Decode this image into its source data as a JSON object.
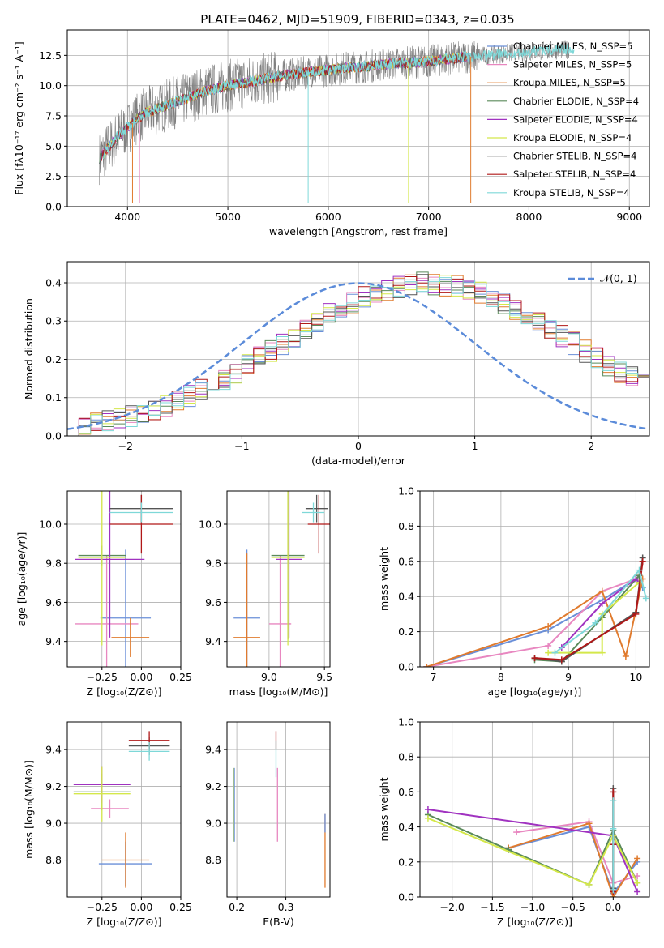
{
  "figure_title": "PLATE=0462, MJD=51909, FIBERID=0343, z=0.035",
  "colors": {
    "Chabrier MILES": "#6a8fd8",
    "Salpeter MILES": "#e887c0",
    "Kroupa MILES": "#e07b2e",
    "Chabrier ELODIE": "#5a8a5a",
    "Salpeter ELODIE": "#a032c0",
    "Kroupa ELODIE": "#d4e84a",
    "Chabrier STELIB": "#555555",
    "Salpeter STELIB": "#b01818",
    "Kroupa STELIB": "#7ed8d8",
    "data": "#808080",
    "normal": "#5b8bd9"
  },
  "chart_data": [
    {
      "type": "line",
      "title": "PLATE=0462, MJD=51909, FIBERID=0343, z=0.035",
      "xlabel": "wavelength [Angstrom, rest frame]",
      "ylabel": "Flux [fλ10⁻¹⁷ erg cm⁻² s⁻¹ A⁻¹]",
      "xlim": [
        3400,
        9200
      ],
      "ylim": [
        0,
        14.6
      ],
      "xticks": [
        4000,
        5000,
        6000,
        7000,
        8000,
        9000
      ],
      "yticks": [
        0.0,
        2.5,
        5.0,
        7.5,
        10.0,
        12.5
      ],
      "legend_position": "right",
      "legend": [
        "Chabrier MILES, N_SSP=5",
        "Salpeter MILES, N_SSP=5",
        "Kroupa MILES, N_SSP=5",
        "Chabrier ELODIE, N_SSP=4",
        "Salpeter ELODIE, N_SSP=4",
        "Kroupa ELODIE, N_SSP=4",
        "Chabrier STELIB, N_SSP=4",
        "Salpeter STELIB, N_SSP=4",
        "Kroupa STELIB, N_SSP=4"
      ],
      "continuum": {
        "x": [
          3720,
          3800,
          3900,
          4000,
          4100,
          4200,
          4400,
          4600,
          4800,
          5000,
          5200,
          5400,
          5600,
          5800,
          6000,
          6200,
          6400,
          6600,
          6800,
          7000,
          7200,
          7400,
          7600,
          7800,
          8000,
          8200,
          8400
        ],
        "y": [
          4.0,
          4.8,
          5.8,
          6.5,
          7.3,
          7.8,
          8.4,
          9.0,
          9.6,
          10.0,
          10.3,
          10.6,
          10.9,
          11.1,
          11.3,
          11.5,
          11.6,
          11.8,
          11.9,
          12.0,
          12.2,
          12.4,
          12.5,
          12.7,
          12.8,
          12.9,
          13.0
        ]
      }
    },
    {
      "type": "bar",
      "title": "",
      "xlabel": "(data-model)/error",
      "ylabel": "Normed distribution",
      "xlim": [
        -2.5,
        2.5
      ],
      "ylim": [
        0,
        0.455
      ],
      "xticks": [
        -2,
        -1,
        0,
        1,
        2
      ],
      "yticks": [
        0.0,
        0.1,
        0.2,
        0.3,
        0.4
      ],
      "legend": [
        "𝒩(0, 1)"
      ],
      "bin_width": 0.1,
      "bin_start": -2.5,
      "histogram_base": [
        0.02,
        0.026,
        0.031,
        0.037,
        0.043,
        0.051,
        0.059,
        0.069,
        0.079,
        0.09,
        0.104,
        0.119,
        0.134,
        0.151,
        0.167,
        0.185,
        0.203,
        0.222,
        0.241,
        0.26,
        0.279,
        0.3,
        0.318,
        0.333,
        0.349,
        0.362,
        0.372,
        0.382,
        0.39,
        0.395,
        0.398,
        0.398,
        0.395,
        0.39,
        0.382,
        0.372,
        0.36,
        0.347,
        0.332,
        0.316,
        0.298,
        0.28,
        0.261,
        0.242,
        0.222,
        0.203,
        0.185,
        0.167,
        0.151,
        0.134,
        0.119,
        0.104,
        0.09,
        0.079,
        0.069,
        0.059,
        0.051,
        0.043,
        0.037,
        0.031,
        0.026,
        0.022,
        0.02,
        0.018,
        0.017,
        0.016,
        0.015,
        0.015,
        0.015,
        0.015
      ],
      "normal_pdf": {
        "mean": 0,
        "sigma": 1
      }
    },
    {
      "type": "scatter",
      "xlabel": "Z [log₁₀(Z/Z⊙)]",
      "ylabel": "age  [log₁₀(age/yr)]",
      "xlim": [
        -0.47,
        0.25
      ],
      "ylim": [
        9.27,
        10.17
      ],
      "xticks": [
        -0.25,
        0.0,
        0.25
      ],
      "yticks": [
        9.4,
        9.6,
        9.8,
        10.0
      ],
      "points": [
        {
          "series": "Chabrier MILES",
          "x": -0.1,
          "y": 9.52,
          "xerr": 0.16,
          "yerr": 0.35
        },
        {
          "series": "Salpeter MILES",
          "x": -0.22,
          "y": 9.49,
          "xerr": 0.2,
          "yerr": 0.35
        },
        {
          "series": "Kroupa MILES",
          "x": -0.07,
          "y": 9.42,
          "xerr": 0.12,
          "yerr": 0.1
        },
        {
          "series": "Chabrier ELODIE",
          "x": -0.25,
          "y": 9.84,
          "xerr": 0.15,
          "yerr": 0.05
        },
        {
          "series": "Salpeter ELODIE",
          "x": -0.2,
          "y": 9.82,
          "xerr": 0.22,
          "yerr": 0.4
        },
        {
          "series": "Kroupa ELODIE",
          "x": -0.25,
          "y": 9.83,
          "xerr": 0.15,
          "yerr": 0.45
        },
        {
          "series": "Chabrier STELIB",
          "x": 0.0,
          "y": 10.08,
          "xerr": 0.2,
          "yerr": 0.07
        },
        {
          "series": "Salpeter STELIB",
          "x": 0.0,
          "y": 10.0,
          "xerr": 0.2,
          "yerr": 0.15
        },
        {
          "series": "Kroupa STELIB",
          "x": 0.0,
          "y": 10.06,
          "xerr": 0.2,
          "yerr": 0.05
        }
      ]
    },
    {
      "type": "scatter",
      "xlabel": "mass [log₁₀(M/M⊙)]",
      "ylabel": "",
      "xlim": [
        8.62,
        9.55
      ],
      "ylim": [
        9.27,
        10.17
      ],
      "xticks": [
        9.0,
        9.5
      ],
      "yticks": [
        9.4,
        9.6,
        9.8,
        10.0
      ],
      "points": [
        {
          "series": "Chabrier MILES",
          "x": 8.8,
          "y": 9.52,
          "xerr": 0.12,
          "yerr": 0.35
        },
        {
          "series": "Salpeter MILES",
          "x": 9.1,
          "y": 9.49,
          "xerr": 0.1,
          "yerr": 0.35
        },
        {
          "series": "Kroupa MILES",
          "x": 8.8,
          "y": 9.42,
          "xerr": 0.12,
          "yerr": 0.43
        },
        {
          "series": "Chabrier ELODIE",
          "x": 9.17,
          "y": 9.84,
          "xerr": 0.15,
          "yerr": 0.43
        },
        {
          "series": "Salpeter ELODIE",
          "x": 9.18,
          "y": 9.82,
          "xerr": 0.12,
          "yerr": 0.4
        },
        {
          "series": "Kroupa ELODIE",
          "x": 9.17,
          "y": 9.83,
          "xerr": 0.15,
          "yerr": 0.45
        },
        {
          "series": "Chabrier STELIB",
          "x": 9.43,
          "y": 10.08,
          "xerr": 0.1,
          "yerr": 0.07
        },
        {
          "series": "Salpeter STELIB",
          "x": 9.45,
          "y": 10.0,
          "xerr": 0.1,
          "yerr": 0.15
        },
        {
          "series": "Kroupa STELIB",
          "x": 9.4,
          "y": 10.06,
          "xerr": 0.1,
          "yerr": 0.05
        }
      ]
    },
    {
      "type": "line",
      "xlabel": "age  [log₁₀(age/yr)]",
      "ylabel": "mass weight",
      "xlim": [
        6.8,
        10.2
      ],
      "ylim": [
        0,
        1
      ],
      "xticks": [
        7,
        8,
        9,
        10
      ],
      "yticks": [
        0.0,
        0.2,
        0.4,
        0.6,
        0.8,
        1.0
      ],
      "series": [
        {
          "name": "Chabrier MILES",
          "x": [
            6.9,
            8.7,
            9.5,
            10.0,
            10.1
          ],
          "y": [
            0.0,
            0.21,
            0.38,
            0.5,
            0.45
          ]
        },
        {
          "name": "Salpeter MILES",
          "x": [
            6.9,
            8.7,
            9.5,
            10.0,
            10.05
          ],
          "y": [
            0.0,
            0.12,
            0.43,
            0.5,
            0.52
          ]
        },
        {
          "name": "Kroupa MILES",
          "x": [
            6.9,
            8.7,
            9.5,
            9.85,
            10.1
          ],
          "y": [
            0.0,
            0.23,
            0.43,
            0.06,
            0.5
          ]
        },
        {
          "name": "Chabrier ELODIE",
          "x": [
            8.5,
            8.9,
            9.5,
            10.05
          ],
          "y": [
            0.04,
            0.03,
            0.28,
            0.52
          ]
        },
        {
          "name": "Salpeter ELODIE",
          "x": [
            8.9,
            9.5,
            10.0,
            10.05
          ],
          "y": [
            0.11,
            0.36,
            0.5,
            0.48
          ]
        },
        {
          "name": "Kroupa ELODIE",
          "x": [
            8.7,
            9.5,
            9.5,
            10.05
          ],
          "y": [
            0.08,
            0.08,
            0.3,
            0.48
          ]
        },
        {
          "name": "Chabrier STELIB",
          "x": [
            8.5,
            8.9,
            10.0,
            10.1
          ],
          "y": [
            0.05,
            0.03,
            0.31,
            0.62
          ]
        },
        {
          "name": "Salpeter STELIB",
          "x": [
            8.5,
            8.9,
            10.0,
            10.1
          ],
          "y": [
            0.05,
            0.04,
            0.3,
            0.6
          ]
        },
        {
          "name": "Kroupa STELIB",
          "x": [
            8.8,
            9.4,
            10.05,
            10.15
          ],
          "y": [
            0.08,
            0.25,
            0.55,
            0.39
          ]
        }
      ]
    },
    {
      "type": "scatter",
      "xlabel": "Z [log₁₀(Z/Z⊙)]",
      "ylabel": "mass [log₁₀(M/M⊙)]",
      "xlim": [
        -0.47,
        0.25
      ],
      "ylim": [
        8.6,
        9.55
      ],
      "xticks": [
        -0.25,
        0.0,
        0.25
      ],
      "yticks": [
        8.8,
        9.0,
        9.2,
        9.4
      ],
      "points": [
        {
          "series": "Chabrier MILES",
          "x": -0.1,
          "y": 8.78,
          "xerr": 0.17,
          "yerr": 0.12
        },
        {
          "series": "Salpeter MILES",
          "x": -0.2,
          "y": 9.08,
          "xerr": 0.12,
          "yerr": 0.05
        },
        {
          "series": "Kroupa MILES",
          "x": -0.1,
          "y": 8.8,
          "xerr": 0.15,
          "yerr": 0.15
        },
        {
          "series": "Chabrier ELODIE",
          "x": -0.25,
          "y": 9.17,
          "xerr": 0.18,
          "yerr": 0.1
        },
        {
          "series": "Salpeter ELODIE",
          "x": -0.25,
          "y": 9.21,
          "xerr": 0.18,
          "yerr": 0.1
        },
        {
          "series": "Kroupa ELODIE",
          "x": -0.25,
          "y": 9.16,
          "xerr": 0.18,
          "yerr": 0.15
        },
        {
          "series": "Chabrier STELIB",
          "x": 0.05,
          "y": 9.42,
          "xerr": 0.13,
          "yerr": 0.05
        },
        {
          "series": "Salpeter STELIB",
          "x": 0.05,
          "y": 9.45,
          "xerr": 0.13,
          "yerr": 0.05
        },
        {
          "series": "Kroupa STELIB",
          "x": 0.05,
          "y": 9.39,
          "xerr": 0.13,
          "yerr": 0.05
        }
      ]
    },
    {
      "type": "scatter",
      "xlabel": "E(B-V)",
      "ylabel": "",
      "xlim": [
        0.18,
        0.39
      ],
      "ylim": [
        8.6,
        9.55
      ],
      "xticks": [
        0.2,
        0.3
      ],
      "yticks": [
        8.8,
        9.0,
        9.2,
        9.4
      ],
      "points": [
        {
          "series": "Chabrier MILES",
          "x": 0.195,
          "y": 9.1,
          "yerr": 0.2
        },
        {
          "series": "Salpeter MILES",
          "x": 0.283,
          "y": 9.1,
          "yerr": 0.2
        },
        {
          "series": "Kroupa MILES",
          "x": 0.38,
          "y": 8.85,
          "yerr": 0.2
        },
        {
          "series": "Salpeter STELIB",
          "x": 0.28,
          "y": 9.45,
          "yerr": 0.05
        },
        {
          "series": "Kroupa STELIB",
          "x": 0.28,
          "y": 9.35,
          "yerr": 0.1
        },
        {
          "series": "Kroupa ELODIE",
          "x": 0.193,
          "y": 9.1,
          "yerr": 0.2
        },
        {
          "series": "Chabrier MILES",
          "x": 0.38,
          "y": 9.0,
          "yerr": 0.05
        }
      ]
    },
    {
      "type": "line",
      "xlabel": "Z [log₁₀(Z/Z⊙)]",
      "ylabel": "mass weight",
      "xlim": [
        -2.4,
        0.45
      ],
      "ylim": [
        0,
        1
      ],
      "xticks": [
        -2.0,
        -1.5,
        -1.0,
        -0.5,
        0.0
      ],
      "yticks": [
        0.0,
        0.2,
        0.4,
        0.6,
        0.8,
        1.0
      ],
      "series": [
        {
          "name": "Chabrier MILES",
          "x": [
            -1.3,
            -0.3,
            0.0,
            0.3
          ],
          "y": [
            0.28,
            0.4,
            0.02,
            0.2
          ]
        },
        {
          "name": "Salpeter MILES",
          "x": [
            -1.2,
            -0.3,
            0.0,
            0.3
          ],
          "y": [
            0.37,
            0.43,
            0.08,
            0.12
          ]
        },
        {
          "name": "Kroupa MILES",
          "x": [
            -1.3,
            -0.3,
            0.0,
            0.3
          ],
          "y": [
            0.28,
            0.42,
            0.0,
            0.22
          ]
        },
        {
          "name": "Chabrier ELODIE",
          "x": [
            -2.3,
            -1.3,
            -0.3,
            0.0,
            0.3
          ],
          "y": [
            0.47,
            0.27,
            0.07,
            0.38,
            0.08
          ]
        },
        {
          "name": "Salpeter ELODIE",
          "x": [
            -2.3,
            0.0,
            0.3
          ],
          "y": [
            0.5,
            0.35,
            0.03
          ]
        },
        {
          "name": "Kroupa ELODIE",
          "x": [
            -2.3,
            -0.3,
            0.0,
            0.3
          ],
          "y": [
            0.45,
            0.07,
            0.35,
            0.08
          ]
        },
        {
          "name": "Chabrier STELIB",
          "x": [
            0.0,
            0.0,
            0.0
          ],
          "y": [
            0.62,
            0.3,
            0.05
          ]
        },
        {
          "name": "Salpeter STELIB",
          "x": [
            0.0,
            0.0,
            0.0
          ],
          "y": [
            0.6,
            0.3,
            0.03
          ]
        },
        {
          "name": "Kroupa STELIB",
          "x": [
            0.0,
            0.0,
            0.0
          ],
          "y": [
            0.55,
            0.04,
            0.39
          ]
        }
      ]
    }
  ]
}
